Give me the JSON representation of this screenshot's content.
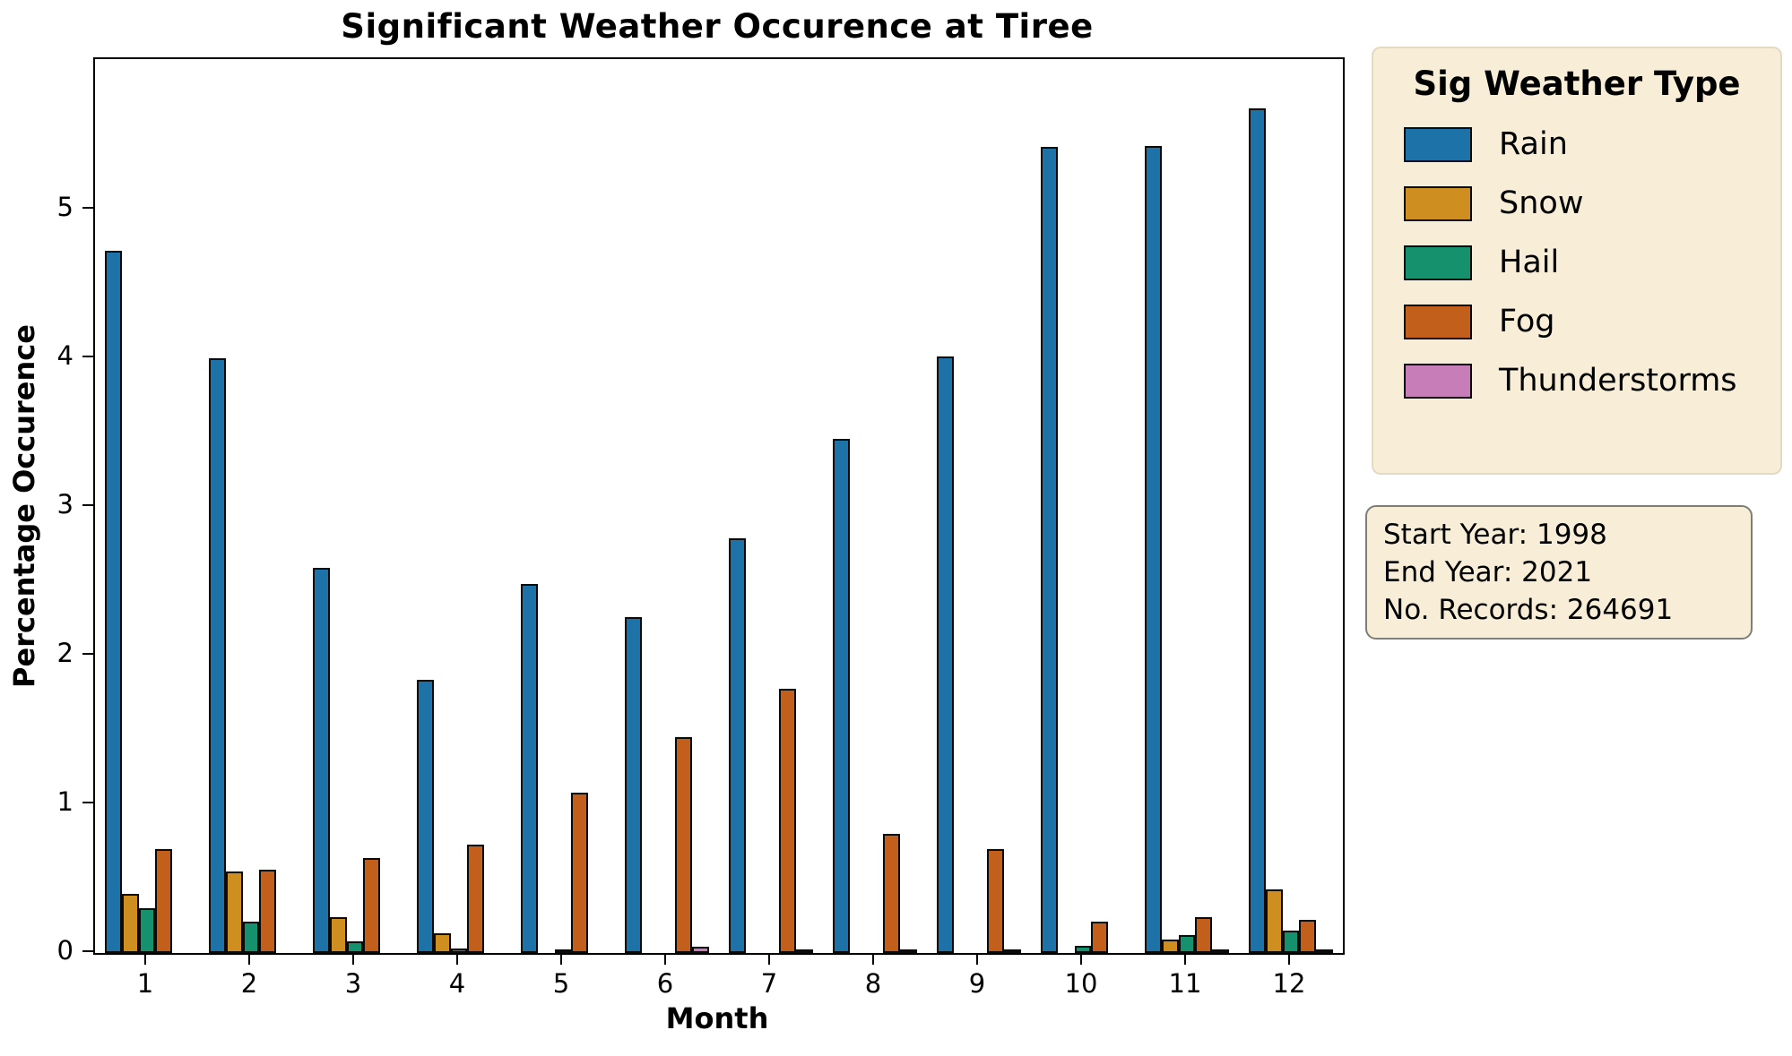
{
  "title": "Significant Weather Occurence at Tiree",
  "x_axis": {
    "label": "Month",
    "ticks": [
      "1",
      "2",
      "3",
      "4",
      "5",
      "6",
      "7",
      "8",
      "9",
      "10",
      "11",
      "12"
    ]
  },
  "y_axis": {
    "label": "Percentage Occurence",
    "ticks": [
      "0",
      "1",
      "2",
      "3",
      "4",
      "5"
    ]
  },
  "legend": {
    "title": "Sig Weather Type"
  },
  "info_box": {
    "lines": [
      "Start Year: 1998",
      "End Year: 2021",
      "No. Records: 264691"
    ]
  },
  "colors": {
    "rain": "#1d73a7",
    "snow": "#cf8e20",
    "hail": "#15916e",
    "fog": "#c2601b",
    "thunderstorms": "#c77db8",
    "box_background": "#f8eed8",
    "bar_edge": "#0a0a0a"
  },
  "chart_data": {
    "type": "bar",
    "title": "Significant Weather Occurence at Tiree",
    "xlabel": "Month",
    "ylabel": "Percentage Occurence",
    "ylim": [
      0,
      6.0
    ],
    "grid": false,
    "legend_position": "outside upper right",
    "categories": [
      1,
      2,
      3,
      4,
      5,
      6,
      7,
      8,
      9,
      10,
      11,
      12
    ],
    "series": [
      {
        "name": "Rain",
        "color": "#1d73a7",
        "values": [
          4.72,
          4.0,
          2.59,
          1.84,
          2.48,
          2.26,
          2.79,
          3.46,
          4.01,
          5.42,
          5.43,
          5.68
        ]
      },
      {
        "name": "Snow",
        "color": "#cf8e20",
        "values": [
          0.4,
          0.55,
          0.24,
          0.13,
          0,
          0,
          0,
          0,
          0,
          0,
          0.09,
          0.43
        ]
      },
      {
        "name": "Hail",
        "color": "#15916e",
        "values": [
          0.3,
          0.21,
          0.08,
          0.03,
          0.02,
          0,
          0,
          0,
          0,
          0.05,
          0.12,
          0.15
        ]
      },
      {
        "name": "Fog",
        "color": "#c2601b",
        "values": [
          0.7,
          0.56,
          0.64,
          0.73,
          1.08,
          1.45,
          1.78,
          0.8,
          0.7,
          0.21,
          0.24,
          0.22
        ]
      },
      {
        "name": "Thunderstorms",
        "color": "#c77db8",
        "values": [
          0,
          0,
          0,
          0,
          0,
          0.04,
          0.01,
          0.01,
          0.01,
          0,
          0.01,
          0.01
        ]
      }
    ],
    "annotations": [
      "Start Year: 1998",
      "End Year: 2021",
      "No. Records: 264691"
    ]
  }
}
